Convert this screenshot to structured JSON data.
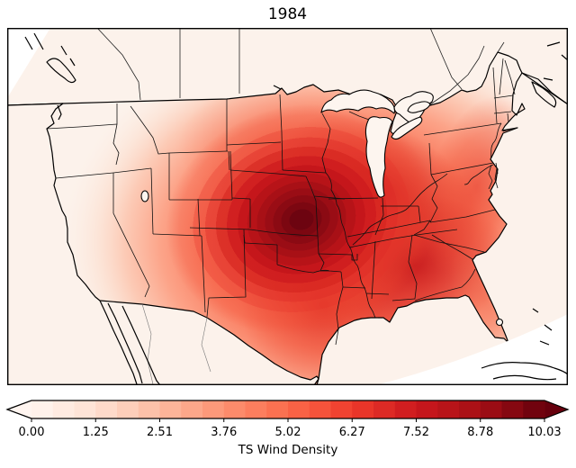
{
  "title": "1984",
  "map": {
    "region": "Contiguous United States with state boundaries, southern Canada, northern Mexico, Great Lakes, Cuba and Bahamas outlines",
    "background_color": "#fcf2eb",
    "no_data_color": "#ffffff",
    "boundary_color": "#000000"
  },
  "colorbar": {
    "label": "TS Wind Density",
    "ticks": [
      "0.00",
      "1.25",
      "2.51",
      "3.76",
      "5.02",
      "6.27",
      "7.52",
      "8.78",
      "10.03"
    ],
    "min": 0.0,
    "max": 10.03,
    "n_segments": 24,
    "extend": "both",
    "colormap": "Reds",
    "colormap_anchors": [
      "#fff5f0",
      "#fee0d2",
      "#fcbba1",
      "#fc9272",
      "#fb6a4a",
      "#ef3b2c",
      "#cb181d",
      "#a50f15",
      "#67000d"
    ]
  },
  "chart_data": {
    "type": "heatmap",
    "title": "1984",
    "legend_label": "TS Wind Density",
    "scale_ticks": [
      0.0,
      1.25,
      2.51,
      3.76,
      5.02,
      6.27,
      7.52,
      8.78,
      10.03
    ],
    "scale_range": [
      0,
      10.03
    ],
    "colormap": "Reds",
    "geography": "Contiguous United States (filled-contour field over a Lambert-conic style map)",
    "maximum": {
      "location": "eastern Kansas / western Missouri border",
      "value": 10.0
    },
    "regional_values": [
      {
        "region": "Eastern Kansas / western Missouri (field maximum)",
        "value": 10.0
      },
      {
        "region": "Oklahoma / Missouri / Iowa ring around maximum",
        "value": 8.0
      },
      {
        "region": "Illinois-Indiana-Ohio corridor",
        "value": 7.5
      },
      {
        "region": "Mississippi-Alabama-Georgia secondary high",
        "value": 7.0
      },
      {
        "region": "Eastern Texas / Louisiana",
        "value": 6.0
      },
      {
        "region": "Kentucky / Tennessee",
        "value": 6.5
      },
      {
        "region": "Mid-Atlantic coast (VA-NJ)",
        "value": 4.5
      },
      {
        "region": "Florida peninsula",
        "value": 3.0
      },
      {
        "region": "New England",
        "value": 1.5
      },
      {
        "region": "High Plains (eastern Colorado / New Mexico)",
        "value": 2.5
      },
      {
        "region": "Rocky Mountains / Great Basin",
        "value": 1.0
      },
      {
        "region": "Pacific coast states",
        "value": 0.3
      },
      {
        "region": "Canada, Mexico and oceans",
        "value": 0.0
      }
    ]
  }
}
